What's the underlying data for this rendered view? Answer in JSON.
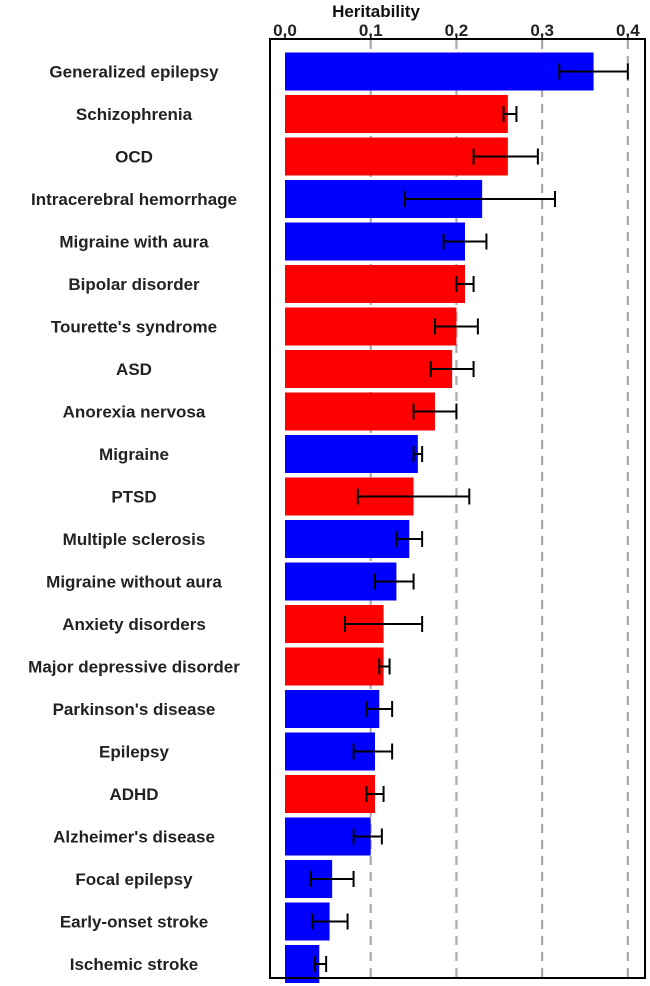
{
  "chart_data": {
    "type": "bar",
    "orientation": "horizontal",
    "title": "Heritability",
    "xlabel": "Heritability",
    "ylabel": "",
    "xlim": [
      -0.0175,
      0.42
    ],
    "xticks": [
      "0.0",
      "0.1",
      "0.2",
      "0.3",
      "0.4"
    ],
    "xtick_values": [
      0.0,
      0.1,
      0.2,
      0.3,
      0.4
    ],
    "gridlines": [
      0.1,
      0.2,
      0.3,
      0.4
    ],
    "group_colors": {
      "neurological": "#0000ff",
      "psychiatric": "#ff0000"
    },
    "categories": [
      "Generalized epilepsy",
      "Schizophrenia",
      "OCD",
      "Intracerebral hemorrhage",
      "Migraine with aura",
      "Bipolar disorder",
      "Tourette's syndrome",
      "ASD",
      "Anorexia nervosa",
      "Migraine",
      "PTSD",
      "Multiple sclerosis",
      "Migraine without aura",
      "Anxiety disorders",
      "Major depressive disorder",
      "Parkinson's disease",
      "Epilepsy",
      "ADHD",
      "Alzheimer's disease",
      "Focal epilepsy",
      "Early-onset stroke",
      "Ischemic stroke"
    ],
    "values": [
      0.36,
      0.26,
      0.26,
      0.23,
      0.21,
      0.21,
      0.2,
      0.195,
      0.175,
      0.155,
      0.15,
      0.145,
      0.13,
      0.115,
      0.115,
      0.11,
      0.105,
      0.105,
      0.1,
      0.055,
      0.052,
      0.04
    ],
    "err_low": [
      0.32,
      0.255,
      0.22,
      0.14,
      0.185,
      0.2,
      0.175,
      0.17,
      0.15,
      0.15,
      0.085,
      0.13,
      0.105,
      0.07,
      0.11,
      0.095,
      0.08,
      0.095,
      0.08,
      0.03,
      0.032,
      0.035
    ],
    "err_high": [
      0.4,
      0.27,
      0.295,
      0.315,
      0.235,
      0.22,
      0.225,
      0.22,
      0.2,
      0.16,
      0.215,
      0.16,
      0.15,
      0.16,
      0.122,
      0.125,
      0.125,
      0.115,
      0.113,
      0.08,
      0.073,
      0.048
    ],
    "groups": [
      "neurological",
      "psychiatric",
      "psychiatric",
      "neurological",
      "neurological",
      "psychiatric",
      "psychiatric",
      "psychiatric",
      "psychiatric",
      "neurological",
      "psychiatric",
      "neurological",
      "neurological",
      "psychiatric",
      "psychiatric",
      "neurological",
      "neurological",
      "psychiatric",
      "neurological",
      "neurological",
      "neurological",
      "neurological"
    ]
  }
}
